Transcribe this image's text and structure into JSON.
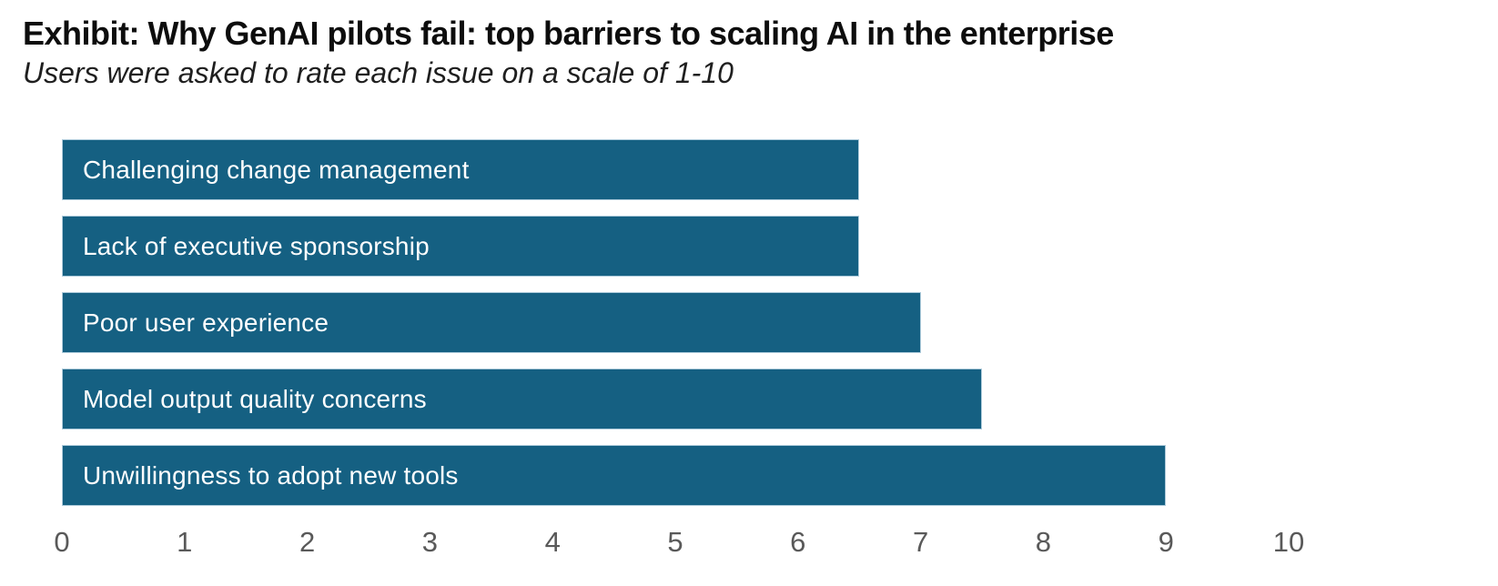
{
  "chart_data": {
    "type": "bar",
    "orientation": "horizontal",
    "title": "Exhibit: Why GenAI pilots fail: top barriers to scaling AI in the enterprise",
    "subtitle": "Users were asked to rate each issue on a scale of 1-10",
    "categories": [
      "Challenging change management",
      "Lack of executive sponsorship",
      "Poor user experience",
      "Model output quality concerns",
      "Unwillingness to adopt new tools"
    ],
    "values": [
      6.5,
      6.5,
      7,
      7.5,
      9
    ],
    "xlabel": "",
    "ylabel": "",
    "xlim": [
      0,
      10
    ],
    "x_ticks": [
      "0",
      "1",
      "2",
      "3",
      "4",
      "5",
      "6",
      "7",
      "8",
      "9",
      "10"
    ],
    "grid": false,
    "legend": "none",
    "bar_labels_inside": true,
    "colors": {
      "bar_fill": "#156082",
      "bar_border": "#aecbdb",
      "bar_label_text": "#ffffff",
      "axis_tick_text": "#595959",
      "title_text": "#0d0d0d",
      "subtitle_text": "#1f1f1f",
      "background": "#ffffff"
    }
  }
}
